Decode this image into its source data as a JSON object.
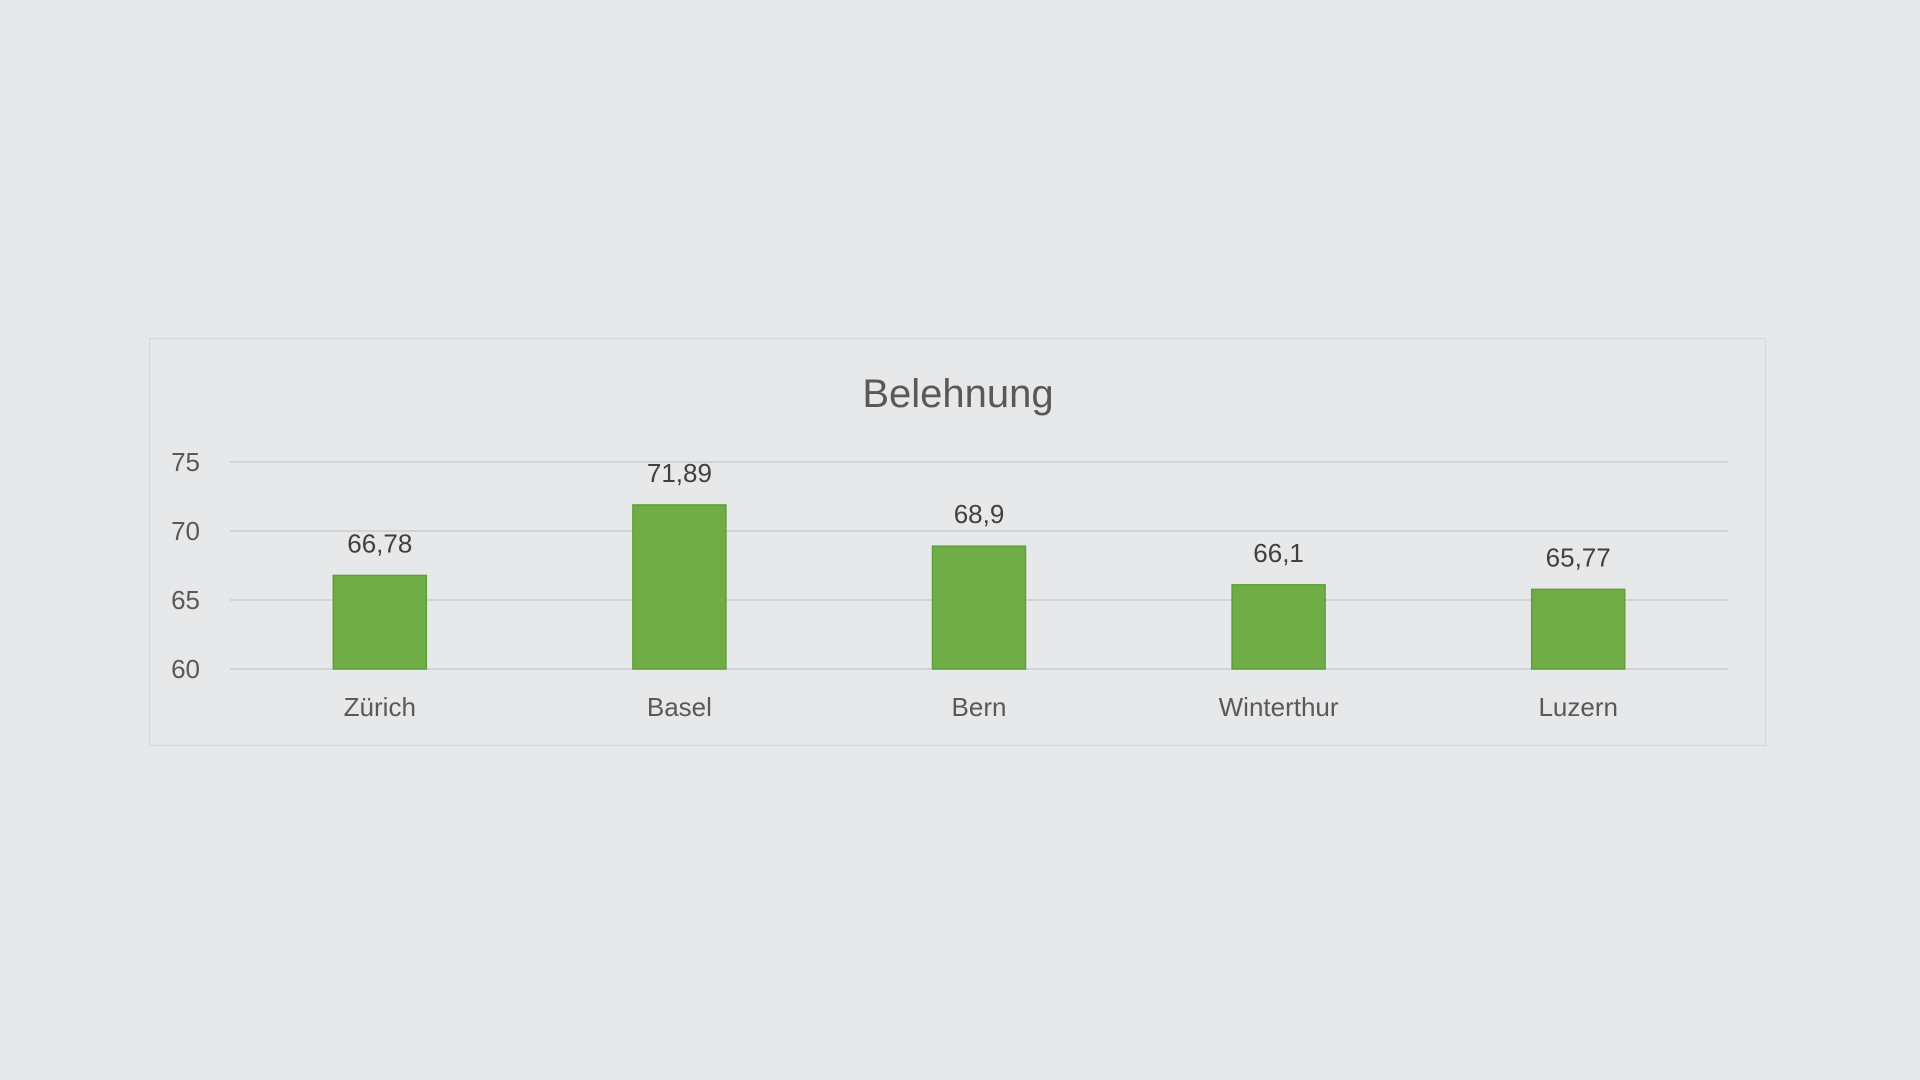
{
  "colors": {
    "background": "#e7e8ea",
    "bar": "#70ad47",
    "text": "#595959"
  },
  "chart_data": {
    "type": "bar",
    "title": "Belehnung",
    "xlabel": "",
    "ylabel": "",
    "categories": [
      "Zürich",
      "Basel",
      "Bern",
      "Winterthur",
      "Luzern"
    ],
    "values": [
      66.78,
      71.89,
      68.9,
      66.1,
      65.77
    ],
    "data_labels": [
      "66,78",
      "71,89",
      "68,9",
      "66,1",
      "65,77"
    ],
    "ylim": [
      60,
      75
    ],
    "yticks": [
      60,
      65,
      70,
      75
    ],
    "ytick_labels": [
      "60",
      "65",
      "70",
      "75"
    ],
    "grid": true,
    "legend": "none"
  }
}
